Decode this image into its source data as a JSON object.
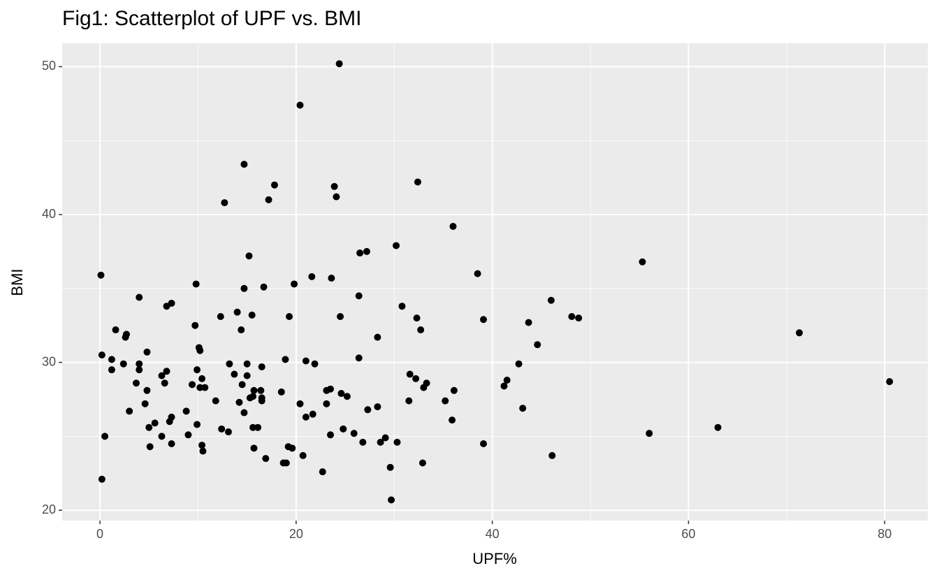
{
  "chart_data": {
    "type": "scatter",
    "title": "Fig1: Scatterplot of UPF vs. BMI",
    "x_label": "UPF%",
    "y_label": "BMI",
    "color": "#000000",
    "grid": true,
    "xlim": [
      -3.85,
      84.4
    ],
    "ylim": [
      19.3,
      51.58
    ],
    "xticks": [
      0,
      20,
      40,
      60,
      80
    ],
    "yticks": [
      20,
      30,
      40,
      50
    ],
    "x_minor_ticks": [
      10,
      30,
      50,
      70
    ],
    "y_minor_ticks": [
      25,
      35,
      45
    ],
    "x": [
      0.1,
      0.2,
      0.2,
      0.5,
      1.2,
      1.2,
      1.6,
      2.4,
      2.7,
      2.6,
      3.0,
      3.7,
      4.0,
      4.0,
      4.0,
      4.8,
      4.8,
      4.6,
      5.0,
      5.1,
      5.6,
      6.3,
      6.3,
      6.6,
      6.8,
      6.8,
      7.3,
      7.1,
      7.3,
      7.3,
      8.8,
      9.0,
      9.4,
      9.7,
      9.8,
      9.9,
      9.9,
      10.1,
      10.2,
      10.4,
      10.2,
      10.7,
      10.4,
      10.5,
      11.8,
      12.3,
      12.4,
      12.7,
      13.1,
      13.2,
      13.7,
      14.0,
      14.2,
      14.4,
      14.5,
      14.7,
      14.7,
      14.7,
      15.0,
      15.0,
      15.2,
      15.3,
      15.5,
      15.6,
      15.6,
      15.7,
      15.7,
      16.1,
      16.4,
      16.5,
      16.5,
      16.5,
      16.7,
      16.9,
      17.2,
      17.8,
      18.5,
      18.7,
      18.9,
      19.0,
      19.2,
      19.3,
      19.6,
      19.8,
      20.4,
      20.4,
      20.7,
      21.0,
      21.0,
      21.6,
      21.7,
      21.9,
      22.7,
      23.1,
      23.1,
      23.5,
      23.6,
      23.5,
      23.9,
      24.1,
      24.4,
      24.5,
      24.6,
      24.8,
      25.2,
      25.9,
      26.4,
      26.4,
      26.5,
      26.8,
      27.2,
      27.3,
      28.3,
      28.3,
      28.6,
      29.1,
      29.6,
      29.7,
      30.3,
      30.2,
      30.8,
      31.5,
      31.6,
      32.2,
      32.3,
      32.4,
      32.7,
      32.9,
      33.0,
      33.3,
      35.2,
      35.9,
      36.0,
      36.1,
      38.5,
      39.1,
      39.1,
      41.2,
      41.5,
      42.7,
      43.1,
      43.7,
      44.6,
      46.0,
      46.1,
      48.1,
      48.8,
      55.3,
      56.0,
      63.0,
      71.3,
      80.5
    ],
    "values": [
      35.9,
      30.5,
      22.1,
      25.0,
      30.2,
      29.5,
      32.2,
      29.9,
      31.9,
      31.7,
      26.7,
      28.6,
      34.4,
      29.9,
      29.5,
      30.7,
      28.1,
      27.2,
      25.6,
      24.3,
      25.9,
      29.1,
      25.0,
      28.6,
      29.4,
      33.8,
      34.0,
      26.0,
      26.3,
      24.5,
      26.7,
      25.1,
      28.5,
      32.5,
      35.3,
      29.5,
      25.8,
      31.0,
      30.8,
      28.9,
      28.3,
      28.3,
      24.4,
      24.0,
      27.4,
      33.1,
      25.5,
      40.8,
      25.3,
      29.9,
      29.2,
      33.4,
      27.3,
      32.2,
      28.5,
      26.6,
      35.0,
      43.4,
      29.9,
      29.1,
      37.2,
      27.6,
      33.2,
      27.7,
      25.6,
      24.2,
      28.1,
      25.6,
      28.1,
      29.7,
      27.4,
      27.6,
      35.1,
      23.5,
      41.0,
      42.0,
      28.0,
      23.2,
      30.2,
      23.2,
      24.3,
      33.1,
      24.2,
      35.3,
      27.2,
      47.4,
      23.7,
      30.1,
      26.3,
      35.8,
      26.5,
      29.9,
      22.6,
      27.2,
      28.1,
      28.2,
      35.7,
      25.1,
      41.9,
      41.2,
      50.2,
      33.1,
      27.9,
      25.5,
      27.7,
      25.2,
      30.3,
      34.5,
      37.4,
      24.6,
      37.5,
      26.8,
      27.0,
      31.7,
      24.6,
      24.9,
      22.9,
      20.7,
      24.6,
      37.9,
      33.8,
      27.4,
      29.2,
      28.9,
      33.0,
      42.2,
      32.2,
      23.2,
      28.3,
      28.6,
      27.4,
      26.1,
      39.2,
      28.1,
      36.0,
      32.9,
      24.5,
      28.4,
      28.8,
      29.9,
      26.9,
      32.7,
      31.2,
      34.2,
      23.7,
      33.1,
      33.0,
      36.8,
      25.2,
      25.6,
      32.0,
      28.7
    ]
  }
}
